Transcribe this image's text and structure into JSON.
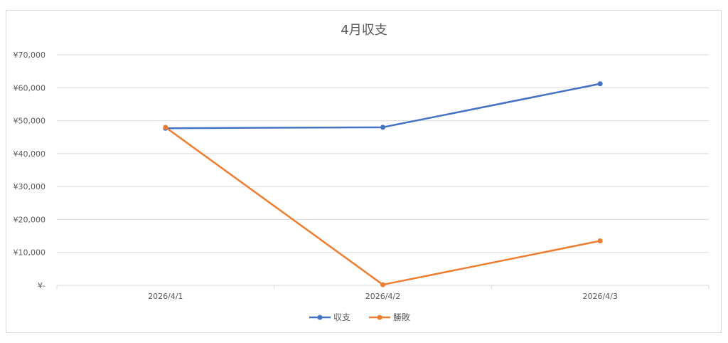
{
  "chart_data": {
    "type": "line",
    "title": "4月収支",
    "categories": [
      "2026/4/1",
      "2026/4/2",
      "2026/4/3"
    ],
    "y_tick_labels": [
      "¥-",
      "¥10,000",
      "¥20,000",
      "¥30,000",
      "¥40,000",
      "¥50,000",
      "¥60,000",
      "¥70,000"
    ],
    "ylim": [
      0,
      70000
    ],
    "y_tick_step": 10000,
    "grid": true,
    "legend_position": "bottom",
    "series": [
      {
        "name": "収支",
        "color": "#4472C4",
        "values": [
          47700,
          48000,
          61200
        ]
      },
      {
        "name": "勝敗",
        "color": "#ED7D31",
        "values": [
          48000,
          200,
          13500
        ]
      }
    ]
  }
}
